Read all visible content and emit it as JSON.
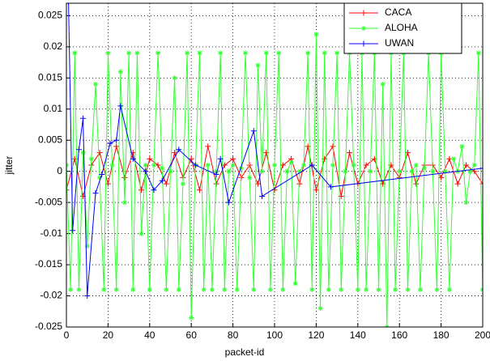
{
  "chart_data": {
    "type": "line",
    "xlabel": "packet-id",
    "ylabel": "jitter",
    "xlim": [
      0,
      200
    ],
    "xticks": [
      0,
      20,
      40,
      60,
      80,
      100,
      120,
      140,
      160,
      180,
      200
    ],
    "ylim": [
      -0.025,
      0.027
    ],
    "yticks": [
      -0.025,
      -0.02,
      -0.015,
      -0.01,
      -0.005,
      0,
      0.005,
      0.01,
      0.015,
      0.02,
      0.025
    ],
    "grid": true,
    "legend": "top-right",
    "series": [
      {
        "name": "CACA",
        "color": "#ff0000",
        "marker": "+",
        "x": [
          0,
          4,
          8,
          12,
          16,
          20,
          24,
          28,
          32,
          36,
          40,
          44,
          48,
          52,
          56,
          60,
          64,
          68,
          72,
          76,
          80,
          84,
          88,
          92,
          96,
          100,
          104,
          108,
          112,
          116,
          120,
          124,
          128,
          132,
          136,
          140,
          144,
          148,
          152,
          156,
          160,
          164,
          168,
          172,
          176,
          180,
          184,
          188,
          192,
          196,
          200
        ],
        "values": [
          -0.003,
          0.002,
          -0.004,
          0.001,
          0.003,
          -0.002,
          0.004,
          -0.001,
          0.003,
          -0.003,
          0.002,
          0.001,
          -0.002,
          0.003,
          -0.001,
          0.002,
          -0.003,
          0.004,
          -0.002,
          0.001,
          0.002,
          -0.001,
          0.001,
          -0.002,
          0.003,
          -0.003,
          0.001,
          0.002,
          -0.002,
          0.004,
          -0.003,
          0.002,
          0.004,
          -0.004,
          0.003,
          -0.002,
          0.001,
          0.002,
          -0.002,
          0.001,
          -0.001,
          0.003,
          -0.002,
          0.001,
          0.001,
          -0.001,
          0.002,
          -0.002,
          0.001,
          0,
          -0.002
        ]
      },
      {
        "name": "ALOHA",
        "color": "#33ff33",
        "marker": "*",
        "x": [
          0,
          2,
          4,
          6,
          8,
          10,
          12,
          14,
          16,
          18,
          20,
          22,
          24,
          26,
          28,
          30,
          32,
          34,
          36,
          38,
          40,
          42,
          44,
          46,
          48,
          50,
          52,
          54,
          56,
          58,
          60,
          62,
          64,
          66,
          68,
          70,
          72,
          74,
          76,
          78,
          80,
          82,
          84,
          86,
          88,
          90,
          92,
          94,
          96,
          98,
          100,
          102,
          104,
          106,
          108,
          110,
          112,
          114,
          116,
          118,
          120,
          122,
          124,
          126,
          128,
          130,
          132,
          134,
          136,
          138,
          140,
          142,
          144,
          146,
          148,
          150,
          152,
          154,
          156,
          158,
          160,
          162,
          164,
          166,
          168,
          170,
          172,
          174,
          176,
          178,
          180,
          182,
          184,
          186,
          188,
          190,
          192,
          194,
          196,
          198,
          200
        ],
        "values": [
          0.001,
          -0.019,
          0.019,
          -0.019,
          0.003,
          -0.012,
          0.002,
          0.014,
          -0.001,
          -0.019,
          0.019,
          0.001,
          -0.019,
          0.016,
          -0.005,
          0.019,
          -0.019,
          0.019,
          -0.01,
          0.001,
          -0.019,
          0.001,
          0.019,
          0.0005,
          -0.019,
          0,
          0.015,
          -0.019,
          -0.002,
          0.019,
          -0.0235,
          0.001,
          0.019,
          -0.019,
          0.001,
          -0.019,
          0,
          0.019,
          -0.019,
          0,
          0.001,
          -0.019,
          0.0005,
          0.019,
          -0.001,
          -0.019,
          0.017,
          0,
          0.019,
          -0.019,
          0.001,
          0.019,
          -0.019,
          0,
          0.0015,
          -0.018,
          0,
          0.001,
          0.019,
          -0.019,
          0.022,
          -0.022,
          0.019,
          -0.019,
          0.001,
          0.019,
          -0.019,
          0,
          0.019,
          0.001,
          -0.019,
          0.019,
          -0.019,
          0,
          0.019,
          -0.019,
          0.014,
          -0.025,
          0.019,
          -0.019,
          0,
          0.019,
          -0.019,
          0,
          0.001,
          -0.019,
          0.0005,
          0.019,
          0,
          -0.019,
          0.019,
          0,
          -0.019,
          0.002,
          0,
          0.004,
          -0.005,
          0,
          0.001,
          0.019,
          -0.019
        ]
      },
      {
        "name": "UWAN",
        "color": "#0000ff",
        "marker": "+",
        "x": [
          1,
          3,
          6,
          8,
          10,
          14,
          17,
          21,
          24,
          26,
          32,
          38,
          42,
          46,
          54,
          62,
          72,
          74,
          78,
          90,
          94,
          118,
          127,
          200
        ],
        "values": [
          0.0272,
          -0.0095,
          0.0035,
          0.0085,
          -0.02,
          -0.0035,
          -0.0005,
          0.0045,
          0.005,
          0.0105,
          0.002,
          0,
          -0.003,
          -0.0015,
          0.0035,
          0.001,
          -0.0005,
          0.002,
          -0.005,
          0.0065,
          -0.004,
          0.001,
          -0.0025,
          0.0005
        ]
      }
    ]
  }
}
